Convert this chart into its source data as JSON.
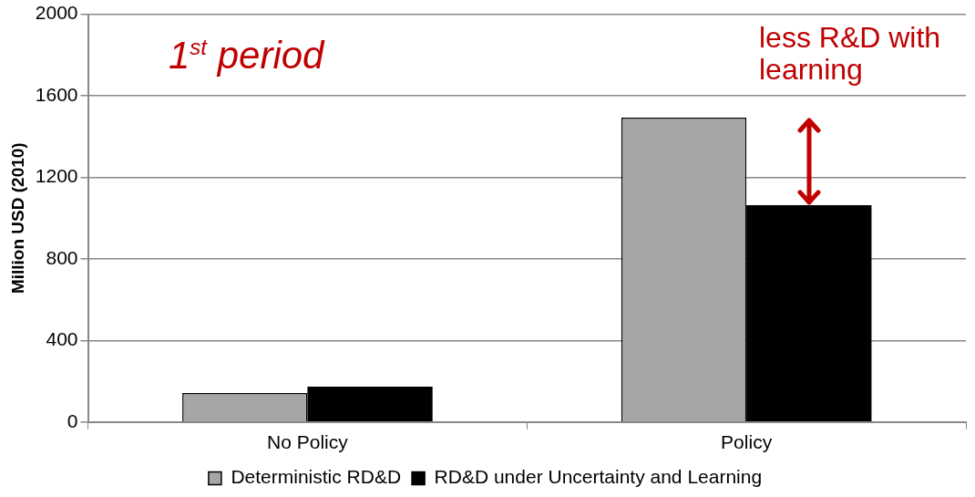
{
  "chart_data": {
    "type": "bar",
    "title": "1$^{st}$ period",
    "ylabel": "Million USD (2010)",
    "categories": [
      "No Policy",
      "Policy"
    ],
    "series": [
      {
        "name": "Deterministic RD&D",
        "color": "#a6a6a6",
        "values": [
          142,
          1493
        ]
      },
      {
        "name": "RD&D under Uncertainty and Learning",
        "color": "#000000",
        "values": [
          174,
          1064
        ]
      }
    ],
    "ylim": [
      0,
      2000
    ],
    "yticks": [
      0,
      400,
      800,
      1200,
      1600,
      2000
    ],
    "grid": "y",
    "legend": "bottom",
    "annotations": [
      {
        "text": "less R&D with learning",
        "x": "Policy",
        "y": 1493
      }
    ]
  }
}
